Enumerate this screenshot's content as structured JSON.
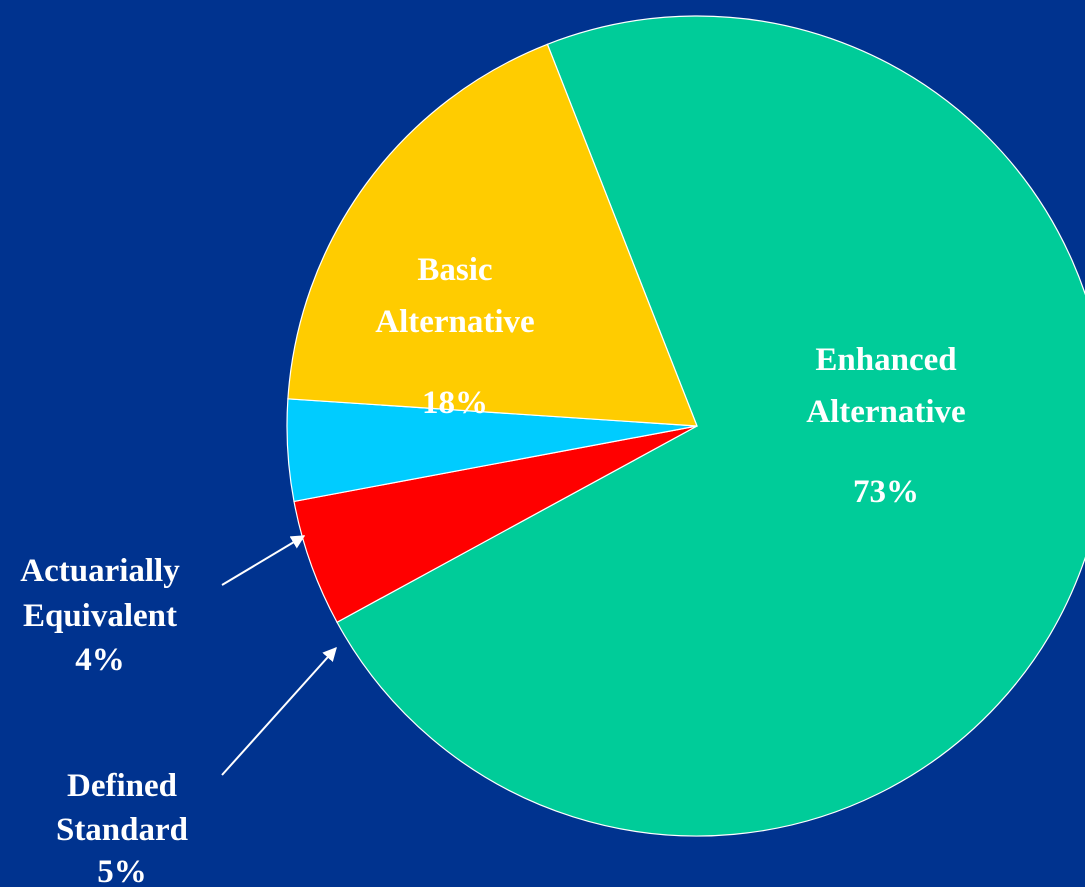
{
  "chart_data": {
    "type": "pie",
    "title": "",
    "background_color": "#00338F",
    "slices": [
      {
        "name_lines": [
          "Enhanced",
          "Alternative"
        ],
        "percent_label": "73%",
        "value": 73,
        "color": "#00CC99",
        "label_color": "#FFFFFF"
      },
      {
        "name_lines": [
          "Defined",
          "Standard"
        ],
        "percent_label": "5%",
        "value": 5,
        "color": "#FF0000",
        "label_color": "#FFFFFF"
      },
      {
        "name_lines": [
          "Actuarially",
          "Equivalent"
        ],
        "percent_label": "4%",
        "value": 4,
        "color": "#00CCFF",
        "label_color": "#FFFFFF"
      },
      {
        "name_lines": [
          "Basic",
          "Alternative"
        ],
        "percent_label": "18%",
        "value": 18,
        "color": "#FFCC00",
        "label_color": "#FFFFFF"
      }
    ]
  }
}
